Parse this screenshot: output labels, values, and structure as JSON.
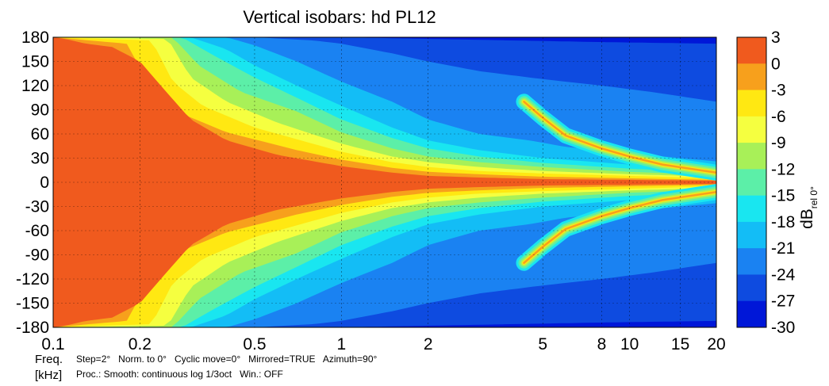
{
  "chart_data": {
    "type": "heatmap",
    "title": "Vertical isobars: hd PL12",
    "xlabel_line1": "Freq.",
    "xlabel_line2": "[kHz]",
    "x_scale": "log",
    "xlim": [
      0.1,
      20
    ],
    "ylim": [
      -180,
      180
    ],
    "x_ticks": [
      0.1,
      0.2,
      0.5,
      1,
      2,
      5,
      8,
      10,
      15,
      20
    ],
    "x_tick_labels": [
      "0.1",
      "0.2",
      "0.5",
      "1",
      "2",
      "5",
      "8",
      "10",
      "15",
      "20"
    ],
    "y_ticks": [
      180,
      150,
      120,
      90,
      60,
      30,
      0,
      -30,
      -60,
      -90,
      -120,
      -150,
      -180
    ],
    "y_tick_labels": [
      "180",
      "150",
      "120",
      "90",
      "60",
      "30",
      "0",
      "-30",
      "-60",
      "-90",
      "-120",
      "-150",
      "-180"
    ],
    "grid": true,
    "colorbar": {
      "label_main": "dB",
      "label_sub": "rel 0°",
      "levels": [
        3,
        0,
        -3,
        -6,
        -9,
        -12,
        -15,
        -18,
        -21,
        -24,
        -27,
        -30
      ],
      "level_labels": [
        "3",
        "0",
        "-3",
        "-6",
        "-9",
        "-12",
        "-15",
        "-18",
        "-21",
        "-24",
        "-27",
        "-30"
      ],
      "colors": [
        "#f05a1e",
        "#f7a01c",
        "#ffe812",
        "#f5ff40",
        "#a8f058",
        "#5cefa8",
        "#19e6f0",
        "#13bdf6",
        "#1a82f2",
        "#0e4be0",
        "#0017d8"
      ]
    },
    "beamwidth_contours_deg": [
      {
        "freq_khz": [
          0.1,
          0.2,
          0.25,
          0.3,
          0.4,
          0.5,
          0.6,
          0.8,
          1,
          1.5,
          2,
          3,
          4,
          5,
          8,
          10,
          15,
          20
        ],
        "minus3": [
          180,
          170,
          150,
          100,
          70,
          60,
          45,
          40,
          35,
          30,
          20,
          14,
          12,
          10,
          7,
          6,
          5,
          4
        ],
        "minus6": [
          180,
          180,
          178,
          125,
          95,
          80,
          62,
          56,
          48,
          40,
          28,
          20,
          17,
          15,
          11,
          9,
          8,
          7
        ],
        "minus15": [
          180,
          180,
          180,
          165,
          150,
          135,
          110,
          95,
          80,
          62,
          45,
          32,
          28,
          24,
          18,
          16,
          14,
          12
        ]
      }
    ],
    "lobe_ridges": [
      {
        "freq_khz": [
          4.3,
          5,
          6,
          8,
          10,
          13,
          20
        ],
        "angle_deg": [
          100,
          80,
          58,
          42,
          32,
          22,
          12
        ]
      }
    ],
    "notes_line1": "Step=2°   Norm. to 0°   Cyclic move=0°   Mirrored=TRUE   Azimuth=90°",
    "notes_line2": "Proc.: Smooth: continuous log 1/3oct   Win.: OFF"
  }
}
